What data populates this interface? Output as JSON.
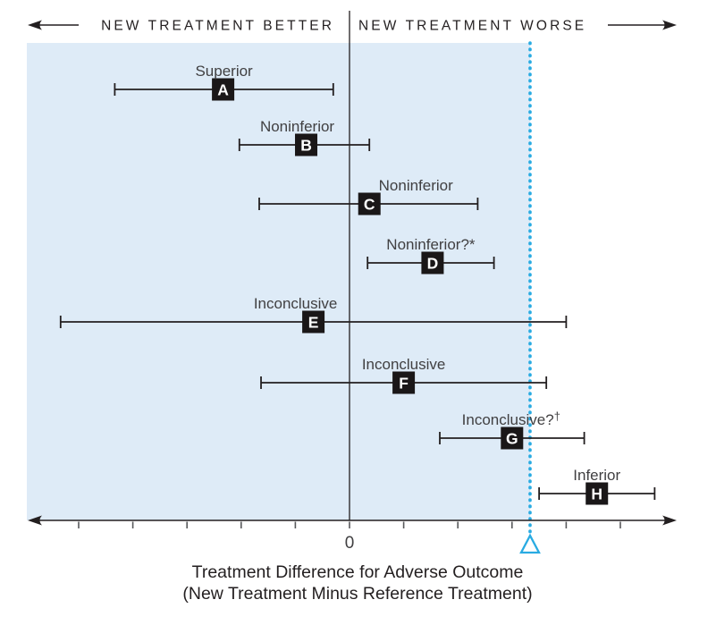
{
  "figure": {
    "header": {
      "left_label": "NEW TREATMENT BETTER",
      "right_label": "NEW TREATMENT WORSE"
    },
    "axis": {
      "zero_label": "0",
      "delta_symbol": "Δ"
    },
    "caption": {
      "line1": "Treatment Difference for Adverse Outcome",
      "line2": "(New Treatment Minus Reference Treatment)"
    }
  },
  "colors": {
    "shade": "#DEEBF7",
    "delta": "#29ABE2",
    "ink": "#231F20",
    "tick": "#58595B",
    "label_text": "#414042",
    "marker_fill": "#1A1718",
    "marker_letter": "#FFFFFF"
  },
  "chart_data": {
    "type": "scatter",
    "subtype": "horizontal-confidence-intervals",
    "title": "",
    "xlabel": "Treatment Difference for Adverse Outcome (New Treatment Minus Reference Treatment)",
    "ylabel": "",
    "x_unit": "delta_units (noninferiority margin Δ = 1.0)",
    "xlim": [
      -1.8,
      1.85
    ],
    "zero_line": 0,
    "noninferiority_margin": 1.0,
    "shaded_region_extent": [
      -1.8,
      1.0
    ],
    "tick_values": [
      -1.5,
      -1.2,
      -0.9,
      -0.6,
      -0.3,
      0,
      0.3,
      0.6,
      0.9,
      1.2,
      1.5
    ],
    "labeled_ticks": {
      "zero": "0",
      "margin": "Δ"
    },
    "grid": false,
    "legend": "none",
    "series": [
      {
        "id": "A",
        "verdict": "Superior",
        "center": -0.7,
        "ci_low": -1.3,
        "ci_high": -0.09
      },
      {
        "id": "B",
        "verdict": "Noninferior",
        "center": -0.24,
        "ci_low": -0.61,
        "ci_high": 0.11
      },
      {
        "id": "C",
        "verdict": "Noninferior",
        "center": 0.11,
        "ci_low": -0.5,
        "ci_high": 0.71
      },
      {
        "id": "D",
        "verdict": "Noninferior?*",
        "center": 0.46,
        "ci_low": 0.1,
        "ci_high": 0.8
      },
      {
        "id": "E",
        "verdict": "Inconclusive",
        "center": -0.2,
        "ci_low": -1.6,
        "ci_high": 1.2
      },
      {
        "id": "F",
        "verdict": "Inconclusive",
        "center": 0.3,
        "ci_low": -0.49,
        "ci_high": 1.09
      },
      {
        "id": "G",
        "verdict": "Inconclusive?†",
        "center": 0.9,
        "ci_low": 0.5,
        "ci_high": 1.3
      },
      {
        "id": "H",
        "verdict": "Inferior",
        "center": 1.37,
        "ci_low": 1.05,
        "ci_high": 1.69
      }
    ]
  }
}
